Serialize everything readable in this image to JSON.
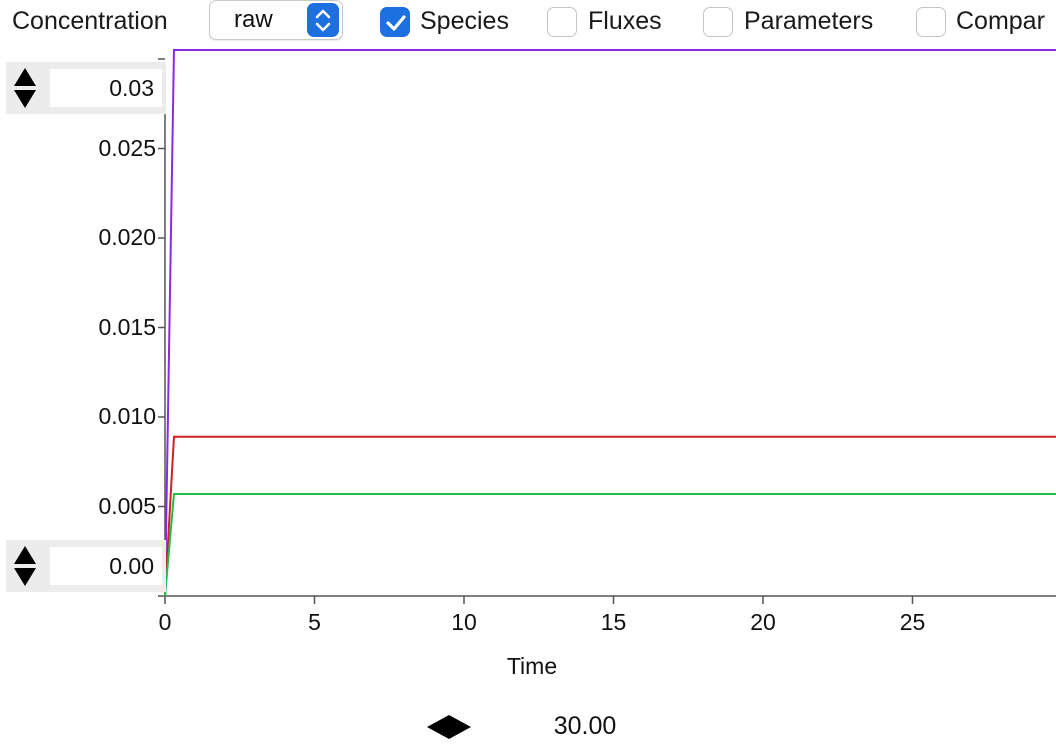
{
  "toolbar": {
    "mode_label": "Concentration",
    "scale_select_value": "raw",
    "checkboxes": [
      {
        "label": "Species",
        "checked": true
      },
      {
        "label": "Fluxes",
        "checked": false
      },
      {
        "label": "Parameters",
        "checked": false
      },
      {
        "label": "Compar",
        "checked": false
      }
    ],
    "accent_color": "#1e6fe0"
  },
  "y_spinners": {
    "max_value": "0.03",
    "min_value": "0.00"
  },
  "time_control": {
    "value": "30.00"
  },
  "chart_data": {
    "type": "line",
    "title": "",
    "xlabel": "Time",
    "ylabel": "",
    "xlim": [
      0,
      30
    ],
    "ylim": [
      0,
      0.031
    ],
    "x_ticks": [
      "0",
      "5",
      "10",
      "15",
      "20",
      "25"
    ],
    "y_ticks": [
      "0.005",
      "0.010",
      "0.015",
      "0.020",
      "0.025"
    ],
    "grid": false,
    "series": [
      {
        "color": "#8a2be2",
        "x": [
          0,
          0.3,
          30
        ],
        "y": [
          0,
          0.0305,
          0.0305
        ]
      },
      {
        "color": "#cc2222",
        "x": [
          0,
          0.3,
          30
        ],
        "y": [
          0,
          0.0089,
          0.0089
        ]
      },
      {
        "color": "#22bb44",
        "x": [
          0,
          0.3,
          30
        ],
        "y": [
          0,
          0.0057,
          0.0057
        ]
      }
    ]
  }
}
